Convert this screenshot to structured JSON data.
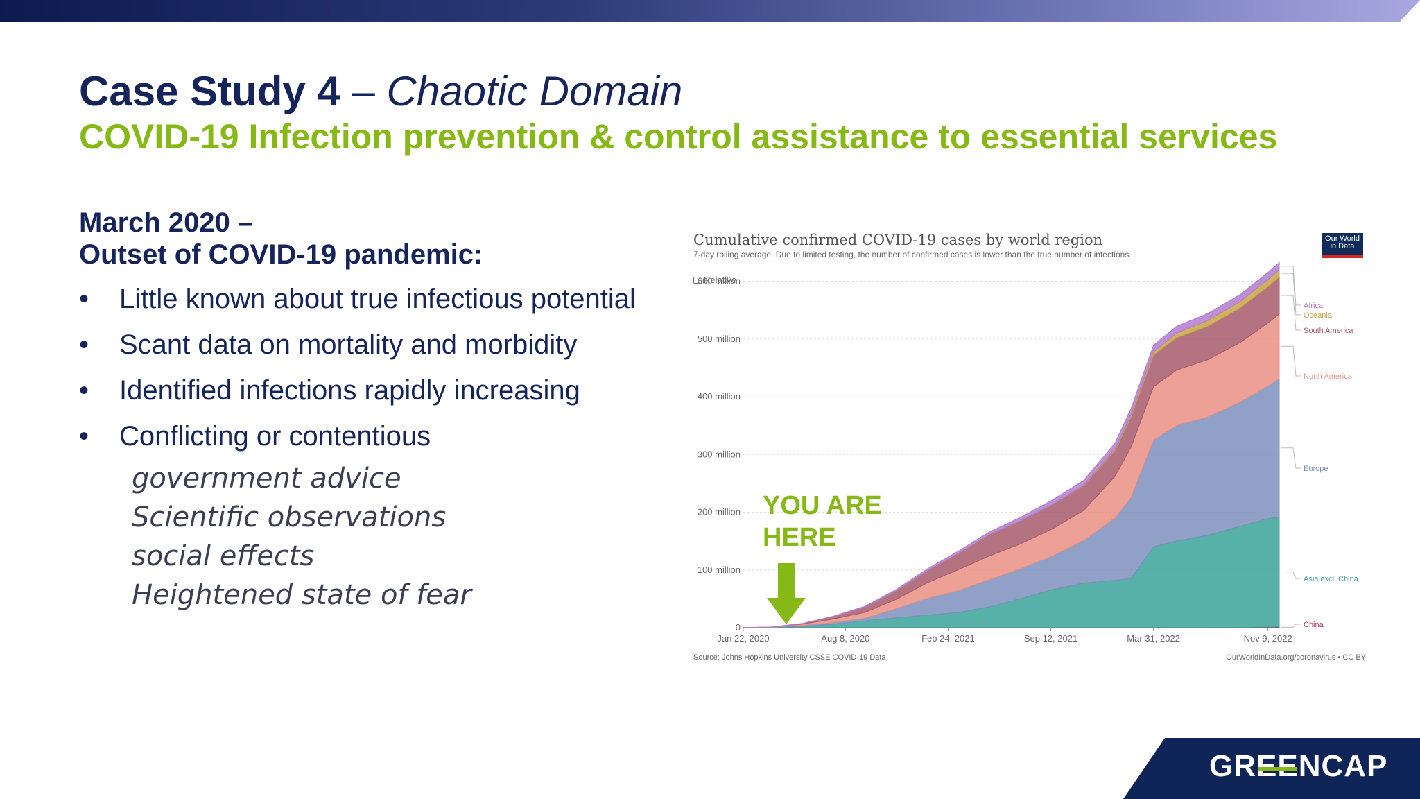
{
  "slide": {
    "title_main": "Case Study 4",
    "title_sep": " – ",
    "title_italic": "Chaotic Domain",
    "subtitle": "COVID-19 Infection prevention & control assistance to essential services",
    "heading_line1": "March 2020 –",
    "heading_line2": "Outset of COVID-19 pandemic:",
    "bullet_glyph": "•",
    "bullets": [
      "Little known about true infectious potential",
      "Scant data on mortality and morbidity",
      "Identified infections rapidly increasing",
      "Conflicting or contentious"
    ],
    "subitems": [
      "government advice",
      "Scientific observations",
      "social effects",
      "Heightened state of fear"
    ],
    "you_are_here_line1": "YOU ARE",
    "you_are_here_line2": "HERE",
    "logo_pre": "GR",
    "logo_ee": "EE",
    "logo_post": "NCAP",
    "colors": {
      "navy": "#15245a",
      "green": "#86b816"
    }
  },
  "chart_meta": {
    "title": "Cumulative confirmed COVID-19 cases by world region",
    "subtitle": "7-day rolling average. Due to limited testing, the number of confirmed cases is lower than the true number of infections.",
    "relative_label": "Relative",
    "owid_line1": "Our World",
    "owid_line2": "in Data",
    "source": "Source: Johns Hopkins University CSSE COVID-19 Data",
    "credit": "OurWorldInData.org/coronavirus • CC BY"
  },
  "chart_data": {
    "type": "area",
    "stacked": true,
    "title": "Cumulative confirmed COVID-19 cases by world region",
    "x": [
      "2020-01-22",
      "2020-03-15",
      "2020-05-15",
      "2020-07-15",
      "2020-09-15",
      "2020-11-15",
      "2021-01-15",
      "2021-03-15",
      "2021-05-15",
      "2021-07-15",
      "2021-09-15",
      "2021-11-15",
      "2022-01-15",
      "2022-02-15",
      "2022-03-31",
      "2022-05-15",
      "2022-07-15",
      "2022-09-15",
      "2022-11-09",
      "2022-12-01"
    ],
    "x_ticks": [
      "Jan 22, 2020",
      "Aug 8, 2020",
      "Feb 24, 2021",
      "Sep 12, 2021",
      "Mar 31, 2022",
      "Nov 9, 2022"
    ],
    "y_ticks": [
      "0",
      "100 million",
      "200 million",
      "300 million",
      "400 million",
      "500 million",
      "600 million"
    ],
    "ylim": [
      0,
      650
    ],
    "grid": true,
    "legend": "right",
    "series": [
      {
        "name": "China",
        "color": "#9f3e6c",
        "values": [
          0.08,
          0.08,
          0.08,
          0.08,
          0.09,
          0.09,
          0.1,
          0.1,
          0.1,
          0.11,
          0.12,
          0.13,
          0.14,
          0.16,
          0.2,
          0.25,
          0.3,
          0.4,
          1,
          1.5
        ]
      },
      {
        "name": "Asia excl. China",
        "color": "#3aa39a",
        "values": [
          0,
          0.5,
          2,
          6,
          12,
          17,
          22,
          26,
          36,
          50,
          66,
          77,
          82,
          85,
          140,
          150,
          160,
          175,
          188,
          190
        ]
      },
      {
        "name": "Europe",
        "color": "#7e8fbd",
        "values": [
          0,
          0.5,
          2,
          3,
          4.5,
          16,
          29,
          38,
          47,
          52,
          58,
          74,
          108,
          140,
          185,
          200,
          205,
          215,
          230,
          240
        ]
      },
      {
        "name": "North America",
        "color": "#ea8f82",
        "values": [
          0,
          0.1,
          2,
          6,
          10,
          16,
          27,
          36,
          41,
          43,
          47,
          52,
          72,
          87,
          92,
          96,
          99,
          103,
          109,
          112
        ]
      },
      {
        "name": "South America",
        "color": "#a75a6b",
        "values": [
          0,
          0.05,
          1,
          4,
          9,
          15,
          21,
          28,
          37,
          40,
          42,
          43,
          45,
          52,
          55,
          56,
          58,
          60,
          63,
          64
        ]
      },
      {
        "name": "Oceania",
        "color": "#c5a442",
        "values": [
          0,
          0,
          0,
          0.02,
          0.03,
          0.05,
          0.05,
          0.05,
          0.05,
          0.06,
          0.1,
          0.5,
          2.5,
          4,
          5.5,
          8,
          10,
          11,
          12,
          12.5
        ]
      },
      {
        "name": "Africa",
        "color": "#b37bcf",
        "values": [
          0,
          0.01,
          0.1,
          0.7,
          1.5,
          2,
          3,
          4,
          4.6,
          6,
          8,
          8.5,
          10,
          11,
          11.5,
          11.8,
          12,
          12.2,
          12.5,
          12.6
        ]
      }
    ]
  }
}
